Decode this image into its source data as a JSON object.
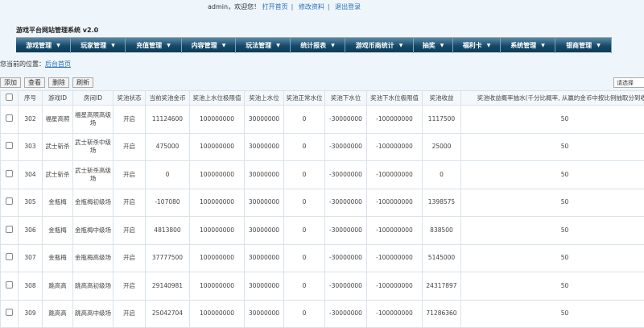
{
  "header": {
    "welcome": "admin，欢迎您！",
    "links": [
      "打开首页",
      "修改资料",
      "退出登录"
    ],
    "title": "游戏平台网站管理系统 v2.0"
  },
  "nav": [
    {
      "label": "游戏管理",
      "w": 68
    },
    {
      "label": "玩家管理",
      "w": 68
    },
    {
      "label": "充值管理",
      "w": 70
    },
    {
      "label": "内容管理",
      "w": 67
    },
    {
      "label": "玩法管理",
      "w": 68
    },
    {
      "label": "统计报表",
      "w": 68
    },
    {
      "label": "游戏币商统计",
      "w": 85
    },
    {
      "label": "抽奖",
      "w": 49
    },
    {
      "label": "福利卡",
      "w": 59
    },
    {
      "label": "系统管理",
      "w": 68
    },
    {
      "label": "银商管理",
      "w": 70
    }
  ],
  "breadcrumb": {
    "prefix": "您当前的位置：",
    "link": "后台首页"
  },
  "toolbar": {
    "add": "添加",
    "query": "查看",
    "delete": "删除",
    "refresh": "刷新",
    "select": "请选择"
  },
  "table": {
    "headers": [
      "序号",
      "游戏ID",
      "房间ID",
      "奖池状态",
      "当前奖池金币",
      "奖池上水位极限值",
      "奖池上水位",
      "奖池正常水位",
      "奖池下水位",
      "奖池下水位极限值",
      "奖池收益",
      "奖池收益概率抽水(千分比概率, 从赢的金币中按比例抽取分到收益"
    ],
    "rows": [
      [
        "302",
        "福星高照",
        "福星高照高级场",
        "开启",
        "11124600",
        "100000000",
        "30000000",
        "0",
        "-30000000",
        "-100000000",
        "1117500",
        "50"
      ],
      [
        "303",
        "武士斩杀",
        "武士斩杀中级场",
        "开启",
        "475000",
        "100000000",
        "30000000",
        "0",
        "-30000000",
        "-100000000",
        "25000",
        "50"
      ],
      [
        "304",
        "武士斩杀",
        "武士斩杀高级场",
        "开启",
        "0",
        "100000000",
        "30000000",
        "0",
        "-30000000",
        "-100000000",
        "0",
        "50"
      ],
      [
        "305",
        "金瓶梅",
        "金瓶梅初级场",
        "开启",
        "-107080",
        "100000000",
        "30000000",
        "0",
        "-30000000",
        "-100000000",
        "1398575",
        "50"
      ],
      [
        "306",
        "金瓶梅",
        "金瓶梅中级场",
        "开启",
        "4813800",
        "100000000",
        "30000000",
        "0",
        "-30000000",
        "-100000000",
        "838500",
        "50"
      ],
      [
        "307",
        "金瓶梅",
        "金瓶梅高级场",
        "开启",
        "37777500",
        "100000000",
        "30000000",
        "0",
        "-30000000",
        "-100000000",
        "5145000",
        "50"
      ],
      [
        "308",
        "跳高高",
        "跳高高初级场",
        "开启",
        "29140981",
        "100000000",
        "30000000",
        "0",
        "-30000000",
        "-100000000",
        "24317897",
        "50"
      ],
      [
        "309",
        "跳高高",
        "跳高高中级场",
        "开启",
        "25042704",
        "100000000",
        "30000000",
        "0",
        "-30000000",
        "-100000000",
        "71286360",
        "50"
      ]
    ]
  }
}
